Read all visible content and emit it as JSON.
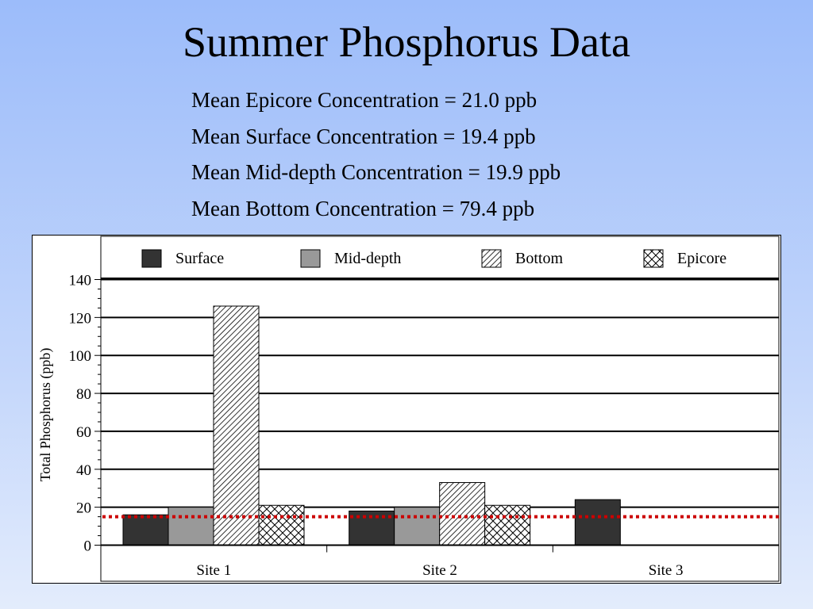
{
  "slide": {
    "title": "Summer Phosphorus Data",
    "means": [
      "Mean Epicore Concentration = 21.0 ppb",
      "Mean Surface Concentration = 19.4 ppb",
      "Mean Mid-depth Concentration = 19.9 ppb",
      "Mean Bottom Concentration = 79.4 ppb"
    ]
  },
  "chart_data": {
    "type": "bar",
    "title": "",
    "xlabel": "",
    "ylabel": "Total Phosphorus (ppb)",
    "categories": [
      "Site 1",
      "Site 2",
      "Site 3"
    ],
    "series": [
      {
        "name": "Surface",
        "values": [
          16,
          18,
          24
        ],
        "color": "#333333",
        "pattern": "solid"
      },
      {
        "name": "Mid-depth",
        "values": [
          20,
          20,
          null
        ],
        "color": "#999999",
        "pattern": "solid"
      },
      {
        "name": "Bottom",
        "values": [
          126,
          33,
          null
        ],
        "color": "#ffffff",
        "pattern": "diagonal-hatch"
      },
      {
        "name": "Epicore",
        "values": [
          21,
          21,
          null
        ],
        "color": "#ffffff",
        "pattern": "crosshatch"
      }
    ],
    "ylim": [
      0,
      140
    ],
    "yticks": [
      0,
      20,
      40,
      60,
      80,
      100,
      120,
      140
    ],
    "grid": true,
    "legend": "top",
    "reference_line": {
      "value": 15,
      "color": "#cc0000",
      "style": "dotted"
    }
  }
}
